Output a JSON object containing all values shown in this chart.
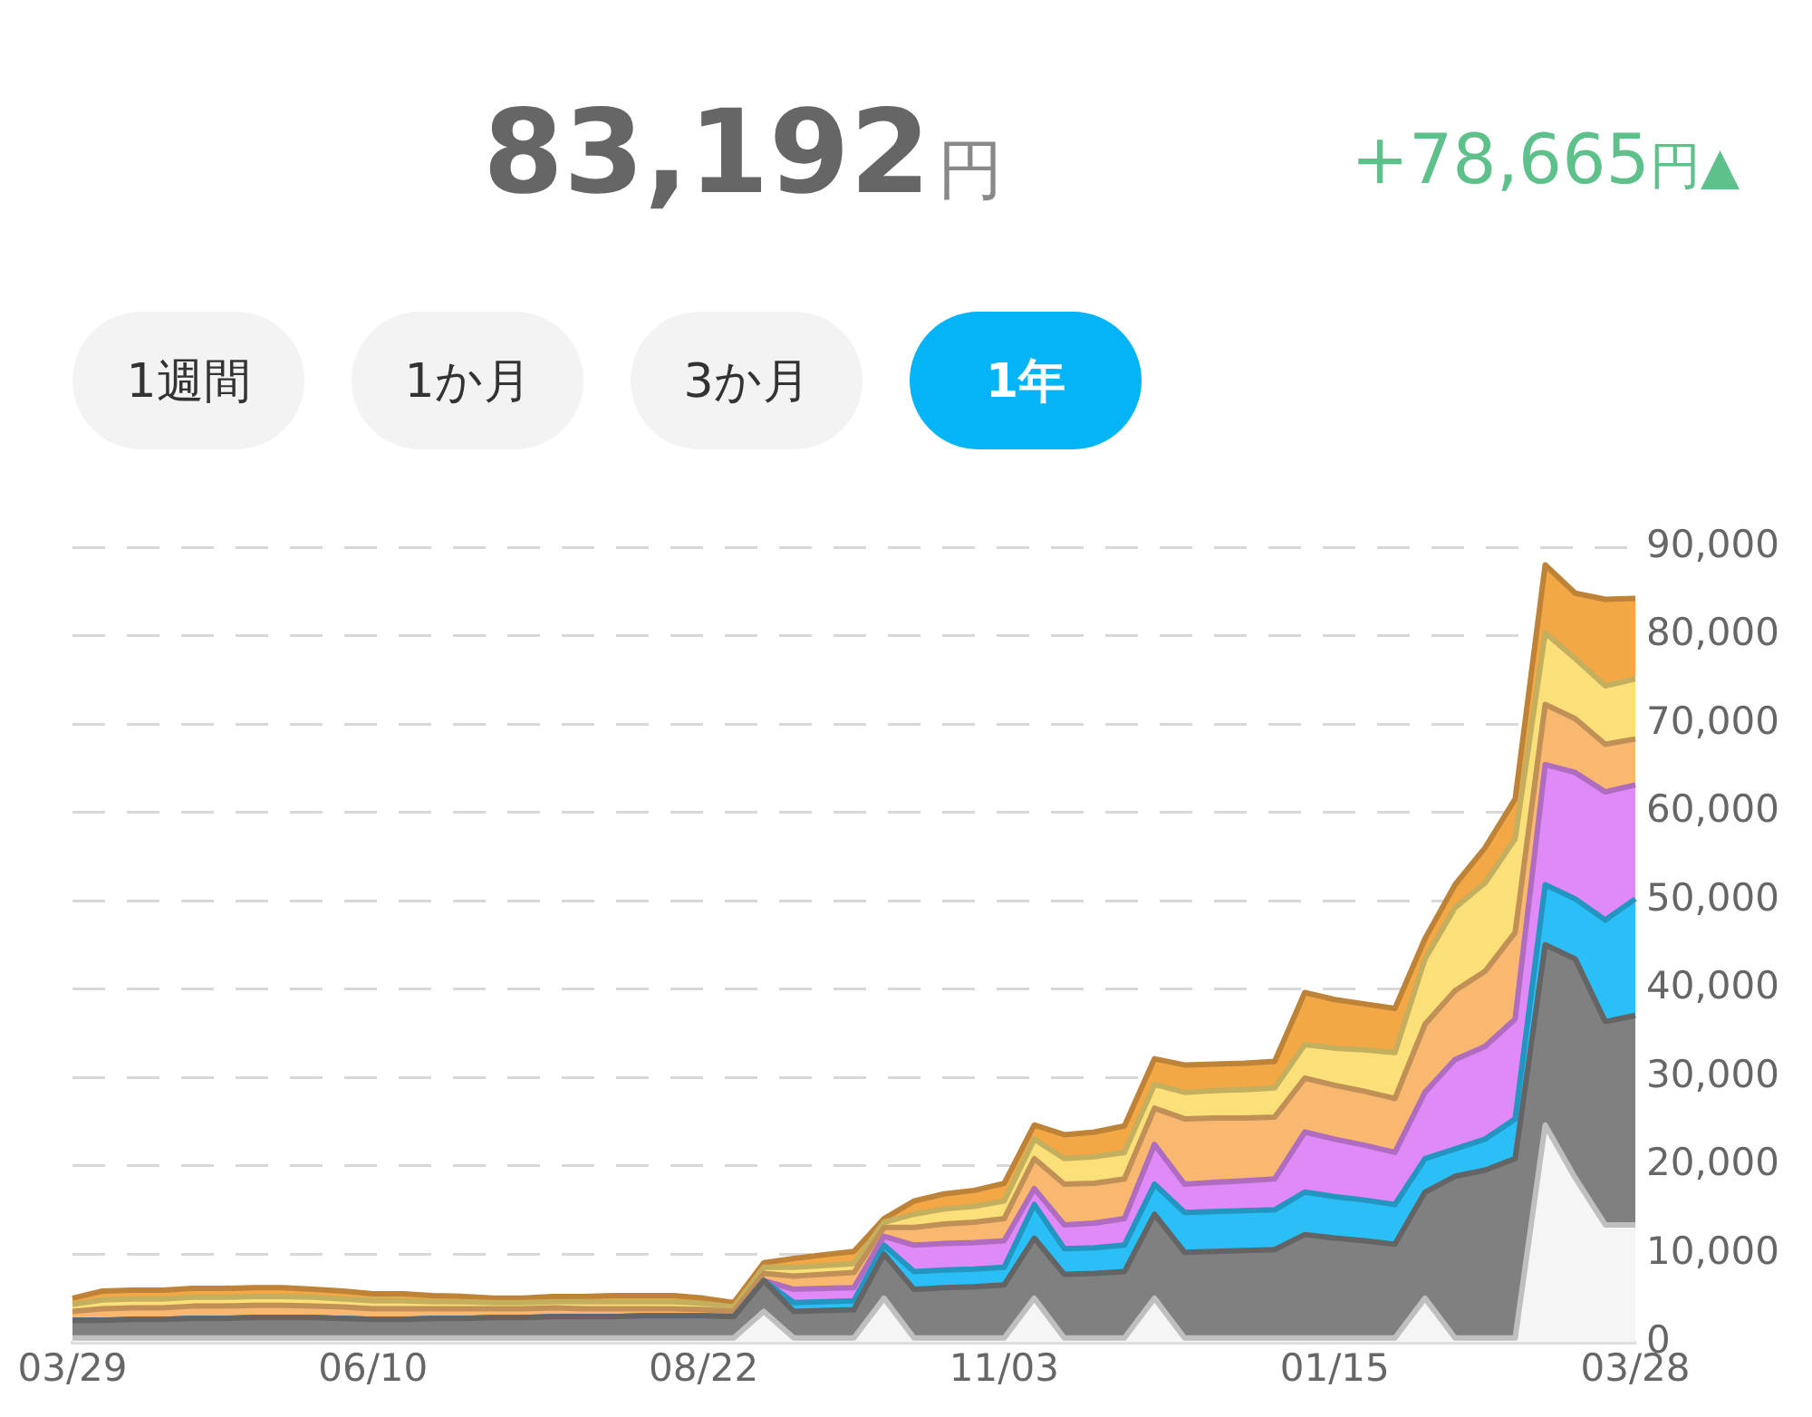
{
  "chart_data": {
    "type": "area",
    "stacked": true,
    "title": "83,192円",
    "subtitle": "+78,665円▲",
    "annotations": [
      "1週間",
      "1か月",
      "3か月",
      "1年"
    ],
    "categories": [
      "03/29",
      null,
      null,
      null,
      null,
      null,
      null,
      null,
      null,
      null,
      "06/10",
      null,
      null,
      null,
      null,
      null,
      null,
      null,
      null,
      null,
      null,
      "08/22",
      null,
      null,
      null,
      null,
      null,
      null,
      null,
      null,
      null,
      "11/03",
      null,
      null,
      null,
      null,
      null,
      null,
      null,
      null,
      null,
      null,
      "01/15",
      null,
      null,
      null,
      null,
      null,
      null,
      null,
      null,
      null,
      "03/28"
    ],
    "ylim": [
      0,
      90000
    ],
    "yticks": [
      {
        "value": 0,
        "label": "0"
      },
      {
        "value": 10000,
        "label": "10,000"
      },
      {
        "value": 20000,
        "label": "20,000"
      },
      {
        "value": 30000,
        "label": "30,000"
      },
      {
        "value": 40000,
        "label": "40,000"
      },
      {
        "value": 50000,
        "label": "50,000"
      },
      {
        "value": 60000,
        "label": "60,000"
      },
      {
        "value": 70000,
        "label": "70,000"
      },
      {
        "value": 80000,
        "label": "80,000"
      },
      {
        "value": 90000,
        "label": "90,000"
      }
    ],
    "grid": "y",
    "legend": false,
    "series": [
      {
        "color": "#f5f5f5",
        "values": [
          500,
          500,
          500,
          500,
          500,
          500,
          500,
          500,
          500,
          500,
          500,
          500,
          500,
          500,
          500,
          500,
          500,
          500,
          500,
          500,
          500,
          500,
          500,
          3500,
          500,
          500,
          500,
          5000,
          500,
          500,
          500,
          500,
          5000,
          500,
          500,
          500,
          5000,
          500,
          500,
          500,
          500,
          500,
          500,
          500,
          500,
          5000,
          500,
          500,
          500,
          24600,
          18600,
          13300,
          13300
        ]
      },
      {
        "color": "#808080",
        "values": [
          2000,
          2000,
          2100,
          2100,
          2200,
          2200,
          2300,
          2300,
          2300,
          2200,
          2100,
          2100,
          2200,
          2200,
          2300,
          2300,
          2400,
          2400,
          2400,
          2500,
          2500,
          2500,
          2400,
          3500,
          3000,
          3100,
          3200,
          5000,
          5500,
          5700,
          5800,
          6000,
          6800,
          7200,
          7300,
          7500,
          9500,
          9700,
          9800,
          9900,
          10000,
          11700,
          11300,
          11000,
          10600,
          12000,
          18300,
          19000,
          20300,
          20400,
          24800,
          23000,
          23700
        ]
      },
      {
        "color": "#2bbff7",
        "values": [
          0,
          0,
          0,
          0,
          0,
          0,
          0,
          0,
          0,
          0,
          0,
          0,
          0,
          0,
          0,
          0,
          0,
          0,
          0,
          0,
          0,
          0,
          0,
          0,
          1000,
          1000,
          1000,
          1000,
          2000,
          2000,
          2000,
          2000,
          3800,
          2900,
          2900,
          3000,
          3400,
          4500,
          4500,
          4500,
          4500,
          4800,
          4700,
          4600,
          4500,
          3800,
          3100,
          3500,
          4500,
          6800,
          6800,
          11500,
          13200
        ]
      },
      {
        "color": "#e08af8",
        "values": [
          0,
          0,
          0,
          0,
          0,
          0,
          0,
          0,
          0,
          0,
          0,
          0,
          0,
          0,
          0,
          0,
          0,
          0,
          0,
          0,
          0,
          0,
          0,
          0,
          1500,
          1500,
          1500,
          1000,
          3000,
          3000,
          3000,
          3000,
          1800,
          2700,
          2800,
          3000,
          4500,
          3200,
          3300,
          3400,
          3500,
          6800,
          6500,
          6200,
          5900,
          7500,
          10100,
          10500,
          11300,
          13600,
          14300,
          14500,
          12900
        ]
      },
      {
        "color": "#f8b870",
        "values": [
          1000,
          1300,
          1300,
          1300,
          1400,
          1400,
          1400,
          1400,
          1300,
          1300,
          1200,
          1200,
          1100,
          1100,
          1000,
          1000,
          1000,
          900,
          900,
          800,
          800,
          700,
          600,
          800,
          1500,
          1600,
          1700,
          1000,
          2000,
          2200,
          2300,
          2500,
          3400,
          4600,
          4500,
          4500,
          4100,
          7400,
          7300,
          7100,
          7000,
          6100,
          6100,
          6100,
          6100,
          7700,
          7800,
          8500,
          9800,
          6800,
          6100,
          5400,
          5200
        ]
      },
      {
        "color": "#fbe07a",
        "values": [
          800,
          1000,
          1000,
          1000,
          1000,
          1000,
          1000,
          1000,
          1000,
          900,
          900,
          900,
          800,
          800,
          700,
          700,
          700,
          800,
          800,
          800,
          800,
          700,
          500,
          700,
          1000,
          1000,
          1000,
          600,
          1500,
          1700,
          1800,
          2000,
          2200,
          2900,
          3000,
          3000,
          2700,
          3000,
          3100,
          3200,
          3300,
          3800,
          4200,
          4700,
          5200,
          7400,
          9400,
          10000,
          10600,
          8100,
          6800,
          6600,
          6800
        ]
      },
      {
        "color": "#f3a845",
        "values": [
          700,
          1000,
          1000,
          1000,
          1000,
          1000,
          1000,
          1000,
          900,
          900,
          800,
          800,
          700,
          600,
          500,
          500,
          600,
          600,
          700,
          700,
          700,
          600,
          500,
          500,
          1000,
          1200,
          1400,
          400,
          1500,
          1700,
          1800,
          2000,
          1600,
          2700,
          2800,
          3000,
          2900,
          3100,
          3000,
          3000,
          3000,
          5900,
          5500,
          5200,
          5000,
          2300,
          2600,
          4000,
          4500,
          7700,
          7400,
          9800,
          9100
        ]
      }
    ]
  }
}
